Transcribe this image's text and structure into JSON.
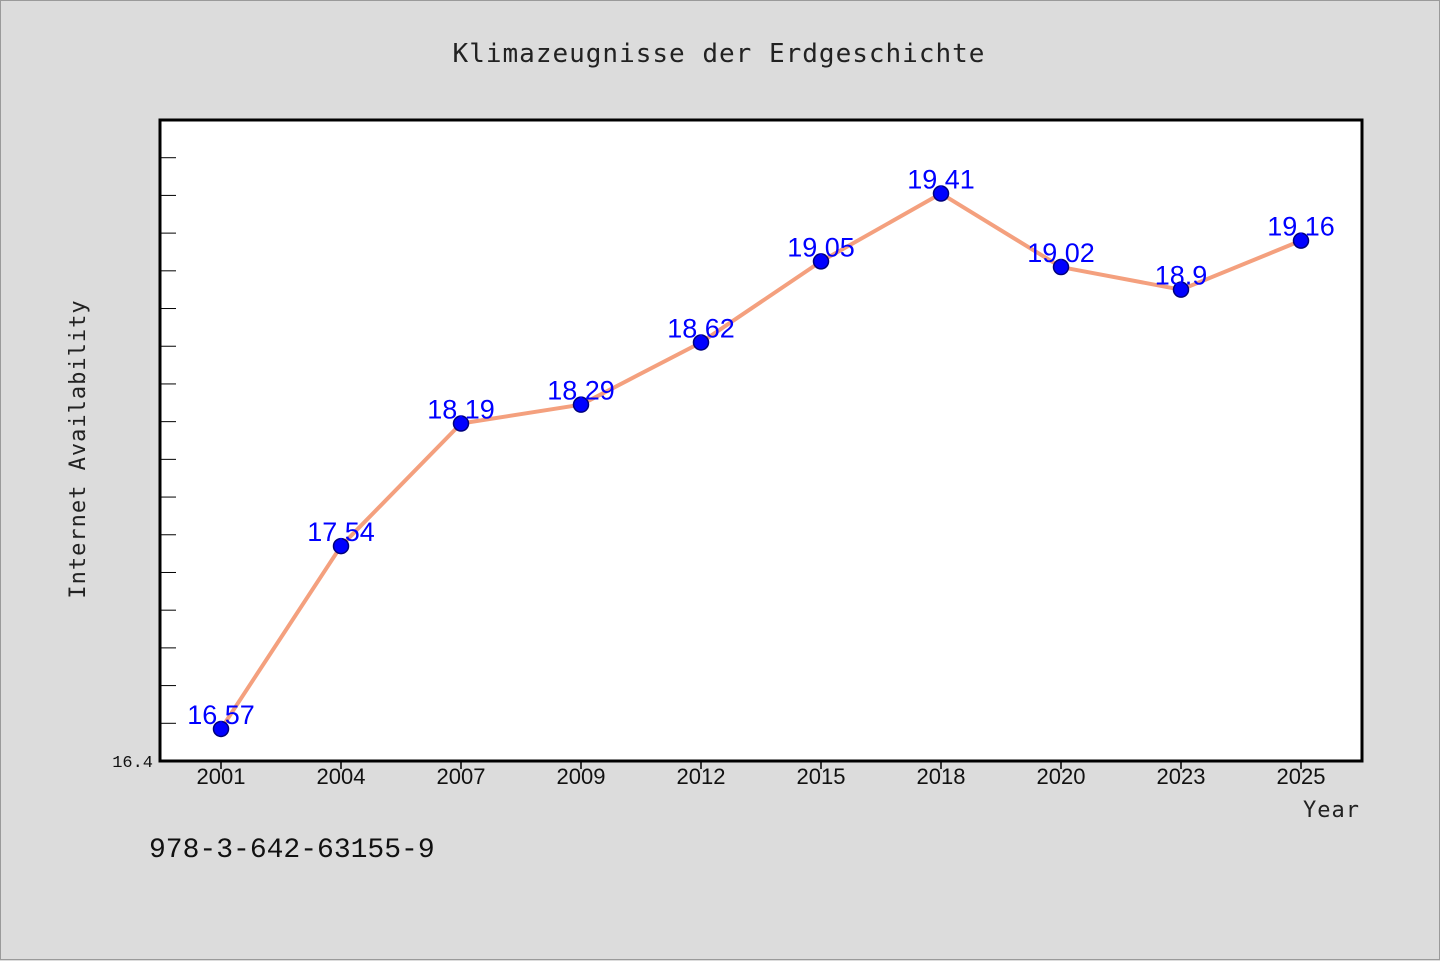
{
  "footnote": "978-3-642-63155-9",
  "chart_data": {
    "type": "line",
    "title": "Klimazeugnisse der Erdgeschichte",
    "xlabel": "Year",
    "ylabel": "Internet Availability",
    "categories": [
      "2001",
      "2004",
      "2007",
      "2009",
      "2012",
      "2015",
      "2018",
      "2020",
      "2023",
      "2025"
    ],
    "values": [
      16.57,
      17.54,
      18.19,
      18.29,
      18.62,
      19.05,
      19.41,
      19.02,
      18.9,
      19.16
    ],
    "data_labels": [
      "16.57",
      "17.54",
      "18.19",
      "18.29",
      "18.62",
      "19.05",
      "19.41",
      "19.02",
      "18.9",
      "19.16"
    ],
    "ylim": [
      16.4,
      19.8
    ],
    "y_tick_labels": [
      "16.4"
    ],
    "grid": false,
    "legend": "none",
    "colors": {
      "line": "#f4a07e",
      "marker": "#0000ff",
      "marker_edge": "#00007a",
      "data_label": "#0000ff",
      "plot_background": "#ffffff",
      "figure_background": "#dcdcdc"
    }
  }
}
